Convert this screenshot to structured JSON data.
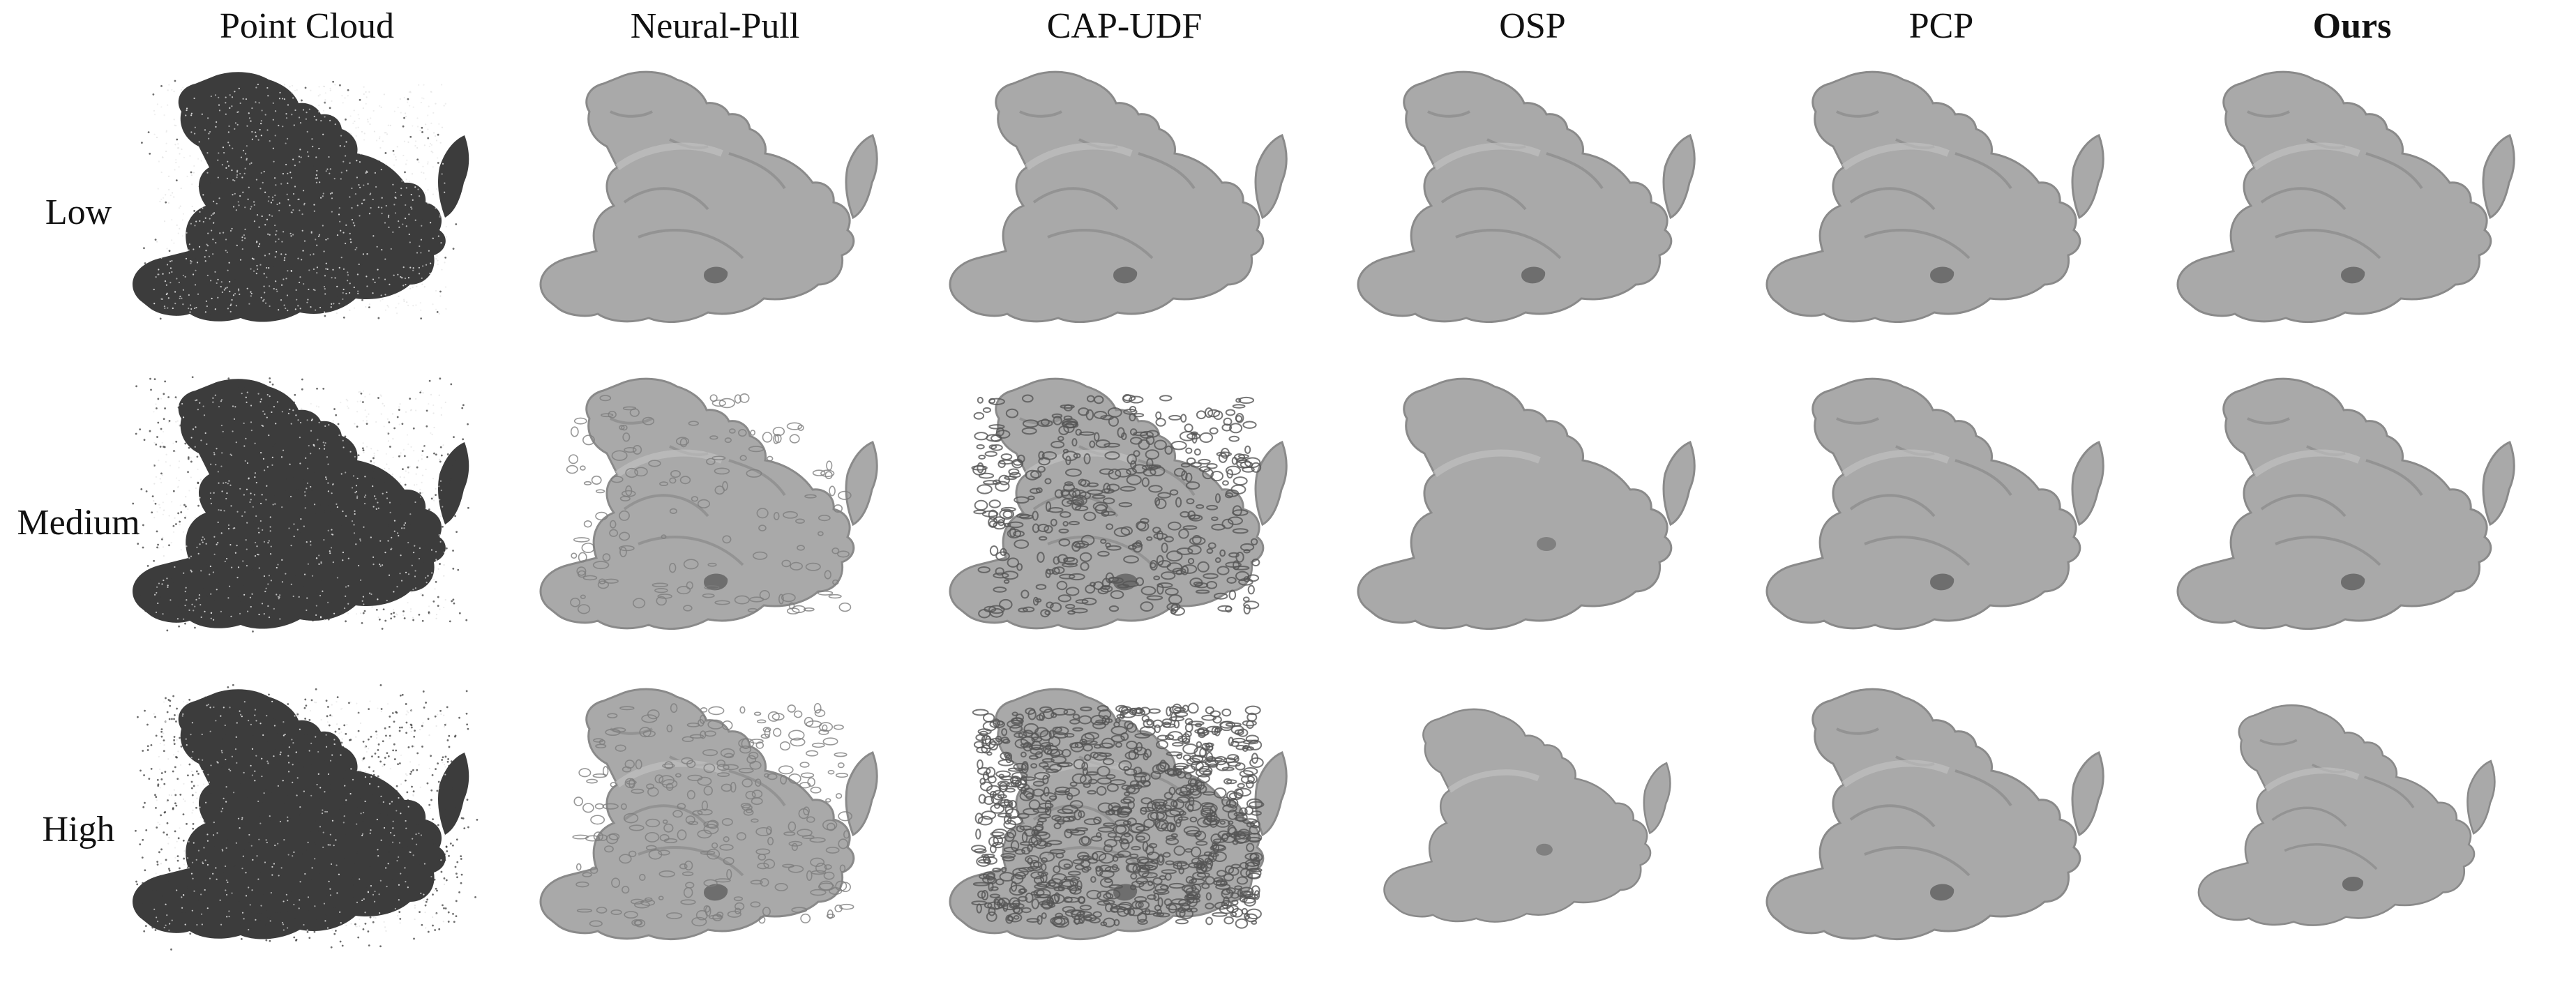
{
  "figure": {
    "columns": [
      {
        "label": "Point Cloud",
        "render": "point-cloud",
        "bold": false
      },
      {
        "label": "Neural-Pull",
        "render": "mesh",
        "bold": false
      },
      {
        "label": "CAP-UDF",
        "render": "mesh",
        "bold": false
      },
      {
        "label": "OSP",
        "render": "mesh",
        "bold": false
      },
      {
        "label": "PCP",
        "render": "mesh",
        "bold": false
      },
      {
        "label": "Ours",
        "render": "mesh",
        "bold": true
      }
    ],
    "rows": [
      {
        "label": "Low",
        "noise": "low"
      },
      {
        "label": "Medium",
        "noise": "medium"
      },
      {
        "label": "High",
        "noise": "high"
      }
    ],
    "colors": {
      "mesh_fill": "#a9a9a9",
      "mesh_shade": "#8a8a8a",
      "mesh_highlight": "#c4c4c4",
      "point_cloud_fill": "#3c3c3c",
      "point_speck": "#e6e6e6"
    },
    "subject_icon": "stone-dragon-statue"
  }
}
